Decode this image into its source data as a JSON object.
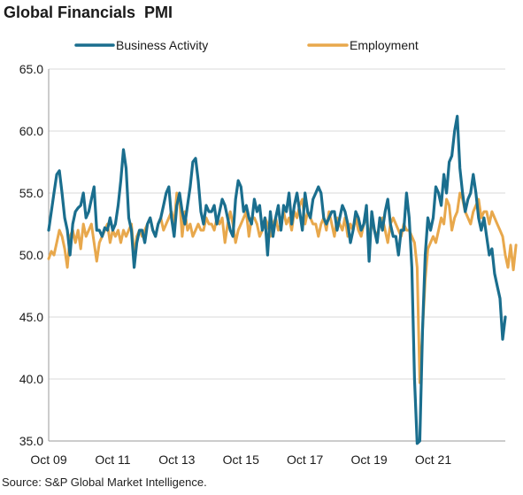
{
  "chart_data": {
    "type": "line",
    "title": "Global Financials  PMI",
    "source": "Source: S&P Global Market Intelligence.",
    "ylim": [
      35,
      65
    ],
    "y_ticks": [
      "65.0",
      "60.0",
      "55.0",
      "50.0",
      "45.0",
      "40.0",
      "35.0"
    ],
    "x_ticks": [
      "Oct 09",
      "Oct 11",
      "Oct 13",
      "Oct 15",
      "Oct 17",
      "Oct 19",
      "Oct 21"
    ],
    "x_start": "Oct 09",
    "x_end": "Jun 22",
    "grid": "y-major",
    "legend_position": "top",
    "series": [
      {
        "name": "Business Activity",
        "color": "#1a6e8e",
        "values": [
          52.0,
          53.5,
          55.0,
          56.5,
          56.8,
          55.0,
          53.0,
          52.0,
          50.0,
          52.5,
          53.5,
          53.8,
          54.0,
          55.0,
          53.0,
          53.5,
          54.5,
          55.5,
          52.0,
          52.0,
          51.5,
          52.2,
          52.0,
          53.0,
          52.0,
          52.5,
          54.0,
          56.0,
          58.5,
          57.0,
          53.0,
          52.0,
          49.0,
          51.0,
          52.0,
          52.0,
          51.0,
          52.5,
          53.0,
          52.0,
          51.5,
          52.5,
          53.0,
          54.0,
          55.0,
          55.5,
          53.0,
          51.5,
          54.0,
          55.0,
          53.5,
          52.5,
          54.0,
          55.5,
          57.5,
          57.8,
          56.0,
          53.5,
          52.5,
          54.0,
          53.5,
          53.5,
          54.0,
          52.5,
          53.5,
          54.5,
          54.0,
          53.0,
          52.0,
          51.5,
          54.5,
          56.0,
          55.5,
          53.5,
          54.0,
          53.0,
          52.5,
          54.5,
          53.5,
          54.0,
          52.0,
          53.0,
          50.0,
          53.5,
          51.5,
          53.0,
          54.0,
          52.0,
          54.0,
          53.5,
          55.0,
          52.5,
          54.0,
          55.0,
          53.5,
          52.0,
          55.0,
          53.5,
          53.0,
          54.5,
          55.0,
          55.5,
          55.0,
          53.0,
          52.5,
          53.0,
          53.5,
          53.5,
          52.0,
          53.0,
          54.0,
          53.5,
          52.5,
          51.0,
          52.0,
          53.5,
          53.0,
          52.0,
          52.5,
          54.0,
          49.5,
          53.5,
          52.0,
          51.0,
          53.0,
          52.0,
          53.5,
          54.5,
          52.5,
          51.5,
          51.5,
          50.0,
          52.0,
          52.0,
          55.0,
          53.0,
          49.0,
          40.0,
          34.8,
          35.0,
          44.0,
          50.0,
          53.0,
          52.0,
          53.0,
          55.5,
          55.0,
          54.0,
          56.5,
          55.0,
          57.5,
          58.0,
          60.0,
          61.2,
          57.0,
          55.0,
          53.5,
          54.5,
          55.0,
          56.5,
          55.0,
          53.0,
          52.0,
          53.0,
          51.5,
          50.0,
          50.5,
          48.5,
          47.5,
          46.5,
          43.2,
          45.0
        ]
      },
      {
        "name": "Employment",
        "color": "#e8a84c",
        "values": [
          49.7,
          50.3,
          50.0,
          51.0,
          52.0,
          51.5,
          50.5,
          49.0,
          51.5,
          52.0,
          51.0,
          52.0,
          50.5,
          52.5,
          51.5,
          52.0,
          52.5,
          51.0,
          49.5,
          51.0,
          51.5,
          52.0,
          52.5,
          51.0,
          52.0,
          51.5,
          52.0,
          51.0,
          52.0,
          51.5,
          52.0,
          52.5,
          50.0,
          51.5,
          52.0,
          51.5,
          52.0,
          52.5,
          53.0,
          52.0,
          51.5,
          52.5,
          53.0,
          52.0,
          52.5,
          53.0,
          53.5,
          52.5,
          55.0,
          54.5,
          51.5,
          53.5,
          52.0,
          52.5,
          51.5,
          52.0,
          52.5,
          52.0,
          52.0,
          53.0,
          52.5,
          52.5,
          52.0,
          53.0,
          52.5,
          53.0,
          51.0,
          52.5,
          53.5,
          52.5,
          51.0,
          52.0,
          52.5,
          53.0,
          53.5,
          51.5,
          53.0,
          53.0,
          52.5,
          51.5,
          52.0,
          53.0,
          52.5,
          51.5,
          52.5,
          53.0,
          52.0,
          52.5,
          53.5,
          52.5,
          53.0,
          52.0,
          53.5,
          53.0,
          54.0,
          54.5,
          52.5,
          53.5,
          53.0,
          52.5,
          52.5,
          51.5,
          52.5,
          53.0,
          52.0,
          53.5,
          52.5,
          51.5,
          53.0,
          52.5,
          52.0,
          53.0,
          51.5,
          52.5,
          52.0,
          53.0,
          52.0,
          51.5,
          52.5,
          53.0,
          51.5,
          52.5,
          52.0,
          51.5,
          52.5,
          53.0,
          52.0,
          51.0,
          52.5,
          53.0,
          52.5,
          52.0,
          51.5,
          52.5,
          52.0,
          52.0,
          51.5,
          51.0,
          49.0,
          39.7,
          44.0,
          48.0,
          50.5,
          51.0,
          51.5,
          51.0,
          52.0,
          53.0,
          52.5,
          54.5,
          54.0,
          52.0,
          53.0,
          53.5,
          55.0,
          54.5,
          53.5,
          53.0,
          52.5,
          53.5,
          54.0,
          54.5,
          53.0,
          53.5,
          53.5,
          52.5,
          53.5,
          53.0,
          52.5,
          52.0,
          51.5,
          50.0,
          49.0,
          50.8,
          48.8,
          50.8
        ]
      }
    ]
  }
}
